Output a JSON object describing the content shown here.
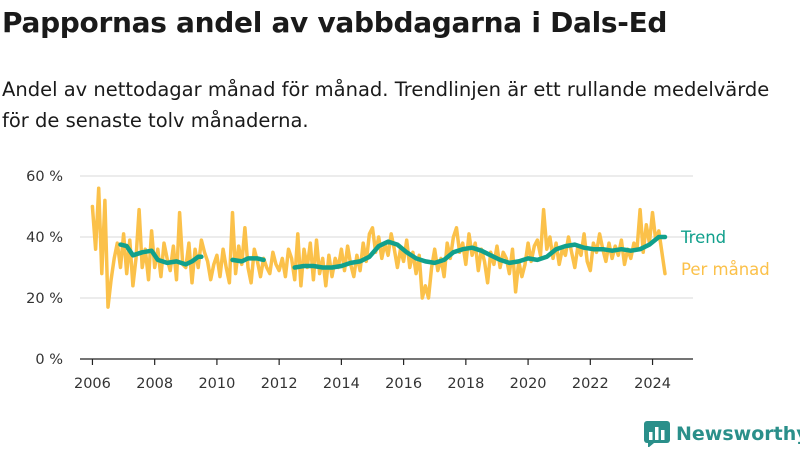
{
  "chart_data": {
    "type": "line",
    "title": "Pappornas andel av vabbdagarna i Dals-Ed",
    "subtitle": "Andel av nettodagar månad för månad. Trendlinjen är ett rullande medelvärde för de senaste tolv månaderna.",
    "xlabel": "",
    "ylabel": "",
    "xlim": [
      2005.6,
      2025.3
    ],
    "ylim": [
      0,
      60
    ],
    "x_ticks": [
      "2006",
      "2008",
      "2010",
      "2012",
      "2014",
      "2016",
      "2018",
      "2020",
      "2022",
      "2024"
    ],
    "y_ticks": [
      {
        "value": 0,
        "label": "0 %"
      },
      {
        "value": 20,
        "label": "20 %"
      },
      {
        "value": 40,
        "label": "40 %"
      },
      {
        "value": 60,
        "label": "60 %"
      }
    ],
    "grid": true,
    "series": [
      {
        "name": "Per månad",
        "color": "#fbc14a",
        "points": [
          [
            2006.0,
            50
          ],
          [
            2006.1,
            36
          ],
          [
            2006.2,
            56
          ],
          [
            2006.3,
            28
          ],
          [
            2006.4,
            52
          ],
          [
            2006.5,
            17
          ],
          [
            2006.6,
            26
          ],
          [
            2006.7,
            33
          ],
          [
            2006.8,
            38
          ],
          [
            2006.9,
            30
          ],
          [
            2007.0,
            41
          ],
          [
            2007.1,
            28
          ],
          [
            2007.2,
            39
          ],
          [
            2007.3,
            24
          ],
          [
            2007.4,
            33
          ],
          [
            2007.5,
            49
          ],
          [
            2007.6,
            30
          ],
          [
            2007.7,
            36
          ],
          [
            2007.8,
            26
          ],
          [
            2007.9,
            42
          ],
          [
            2008.0,
            30
          ],
          [
            2008.1,
            36
          ],
          [
            2008.2,
            27
          ],
          [
            2008.3,
            38
          ],
          [
            2008.4,
            33
          ],
          [
            2008.5,
            29
          ],
          [
            2008.6,
            37
          ],
          [
            2008.7,
            26
          ],
          [
            2008.8,
            48
          ],
          [
            2008.9,
            31
          ],
          [
            2009.0,
            30
          ],
          [
            2009.1,
            38
          ],
          [
            2009.2,
            25
          ],
          [
            2009.3,
            36
          ],
          [
            2009.4,
            30
          ],
          [
            2009.5,
            39
          ],
          [
            2009.6,
            35
          ],
          [
            2009.7,
            32
          ],
          [
            2009.8,
            26
          ],
          [
            2009.9,
            31
          ],
          [
            2010.0,
            34
          ],
          [
            2010.1,
            27
          ],
          [
            2010.2,
            36
          ],
          [
            2010.3,
            30
          ],
          [
            2010.4,
            25
          ],
          [
            2010.5,
            48
          ],
          [
            2010.6,
            28
          ],
          [
            2010.7,
            37
          ],
          [
            2010.8,
            31
          ],
          [
            2010.9,
            43
          ],
          [
            2011.0,
            30
          ],
          [
            2011.1,
            25
          ],
          [
            2011.2,
            36
          ],
          [
            2011.3,
            32
          ],
          [
            2011.4,
            27
          ],
          [
            2011.5,
            33
          ],
          [
            2011.6,
            30
          ],
          [
            2011.7,
            28
          ],
          [
            2011.8,
            35
          ],
          [
            2011.9,
            31
          ],
          [
            2012.0,
            29
          ],
          [
            2012.1,
            33
          ],
          [
            2012.2,
            27
          ],
          [
            2012.3,
            36
          ],
          [
            2012.4,
            33
          ],
          [
            2012.5,
            26
          ],
          [
            2012.6,
            41
          ],
          [
            2012.7,
            24
          ],
          [
            2012.8,
            36
          ],
          [
            2012.9,
            30
          ],
          [
            2013.0,
            38
          ],
          [
            2013.1,
            26
          ],
          [
            2013.2,
            39
          ],
          [
            2013.3,
            28
          ],
          [
            2013.4,
            33
          ],
          [
            2013.5,
            24
          ],
          [
            2013.6,
            34
          ],
          [
            2013.7,
            27
          ],
          [
            2013.8,
            33
          ],
          [
            2013.9,
            30
          ],
          [
            2014.0,
            36
          ],
          [
            2014.1,
            29
          ],
          [
            2014.2,
            37
          ],
          [
            2014.3,
            31
          ],
          [
            2014.4,
            27
          ],
          [
            2014.5,
            34
          ],
          [
            2014.6,
            29
          ],
          [
            2014.7,
            38
          ],
          [
            2014.8,
            32
          ],
          [
            2014.9,
            41
          ],
          [
            2015.0,
            43
          ],
          [
            2015.1,
            35
          ],
          [
            2015.2,
            40
          ],
          [
            2015.3,
            33
          ],
          [
            2015.4,
            38
          ],
          [
            2015.5,
            34
          ],
          [
            2015.6,
            41
          ],
          [
            2015.7,
            36
          ],
          [
            2015.8,
            30
          ],
          [
            2015.9,
            36
          ],
          [
            2016.0,
            32
          ],
          [
            2016.1,
            39
          ],
          [
            2016.2,
            30
          ],
          [
            2016.3,
            35
          ],
          [
            2016.4,
            28
          ],
          [
            2016.5,
            34
          ],
          [
            2016.6,
            20
          ],
          [
            2016.7,
            24
          ],
          [
            2016.8,
            20
          ],
          [
            2016.9,
            30
          ],
          [
            2017.0,
            36
          ],
          [
            2017.1,
            29
          ],
          [
            2017.2,
            33
          ],
          [
            2017.3,
            27
          ],
          [
            2017.4,
            38
          ],
          [
            2017.5,
            33
          ],
          [
            2017.6,
            40
          ],
          [
            2017.7,
            43
          ],
          [
            2017.8,
            35
          ],
          [
            2017.9,
            38
          ],
          [
            2018.0,
            31
          ],
          [
            2018.1,
            41
          ],
          [
            2018.2,
            34
          ],
          [
            2018.3,
            38
          ],
          [
            2018.4,
            29
          ],
          [
            2018.5,
            36
          ],
          [
            2018.6,
            32
          ],
          [
            2018.7,
            25
          ],
          [
            2018.8,
            35
          ],
          [
            2018.9,
            31
          ],
          [
            2019.0,
            37
          ],
          [
            2019.1,
            30
          ],
          [
            2019.2,
            35
          ],
          [
            2019.3,
            33
          ],
          [
            2019.4,
            28
          ],
          [
            2019.5,
            36
          ],
          [
            2019.6,
            22
          ],
          [
            2019.7,
            32
          ],
          [
            2019.8,
            27
          ],
          [
            2019.9,
            31
          ],
          [
            2020.0,
            38
          ],
          [
            2020.1,
            32
          ],
          [
            2020.2,
            37
          ],
          [
            2020.3,
            39
          ],
          [
            2020.4,
            34
          ],
          [
            2020.5,
            49
          ],
          [
            2020.6,
            36
          ],
          [
            2020.7,
            40
          ],
          [
            2020.8,
            33
          ],
          [
            2020.9,
            38
          ],
          [
            2021.0,
            31
          ],
          [
            2021.1,
            36
          ],
          [
            2021.2,
            34
          ],
          [
            2021.3,
            40
          ],
          [
            2021.4,
            35
          ],
          [
            2021.5,
            30
          ],
          [
            2021.6,
            37
          ],
          [
            2021.7,
            34
          ],
          [
            2021.8,
            41
          ],
          [
            2021.9,
            32
          ],
          [
            2022.0,
            29
          ],
          [
            2022.1,
            38
          ],
          [
            2022.2,
            35
          ],
          [
            2022.3,
            41
          ],
          [
            2022.4,
            36
          ],
          [
            2022.5,
            32
          ],
          [
            2022.6,
            38
          ],
          [
            2022.7,
            33
          ],
          [
            2022.8,
            37
          ],
          [
            2022.9,
            34
          ],
          [
            2023.0,
            39
          ],
          [
            2023.1,
            31
          ],
          [
            2023.2,
            36
          ],
          [
            2023.3,
            33
          ],
          [
            2023.4,
            38
          ],
          [
            2023.5,
            36
          ],
          [
            2023.6,
            49
          ],
          [
            2023.7,
            35
          ],
          [
            2023.8,
            44
          ],
          [
            2023.9,
            38
          ],
          [
            2024.0,
            48
          ],
          [
            2024.1,
            39
          ],
          [
            2024.2,
            42
          ],
          [
            2024.3,
            35
          ],
          [
            2024.4,
            28
          ]
        ]
      },
      {
        "name": "Trend",
        "color": "#11a08c",
        "segments": [
          [
            [
              2006.9,
              37.5
            ],
            [
              2007.1,
              37
            ],
            [
              2007.3,
              34
            ],
            [
              2007.6,
              35
            ],
            [
              2007.9,
              35.5
            ],
            [
              2008.1,
              32.5
            ],
            [
              2008.4,
              31.5
            ],
            [
              2008.7,
              32
            ],
            [
              2009.0,
              31
            ],
            [
              2009.2,
              32
            ],
            [
              2009.4,
              33.5
            ],
            [
              2009.5,
              33.5
            ]
          ],
          [
            [
              2010.5,
              32.5
            ],
            [
              2010.8,
              32
            ],
            [
              2011.0,
              33
            ],
            [
              2011.3,
              33
            ],
            [
              2011.5,
              32.5
            ]
          ],
          [
            [
              2012.5,
              30
            ],
            [
              2012.8,
              30.5
            ],
            [
              2013.1,
              30.5
            ],
            [
              2013.4,
              30
            ],
            [
              2013.7,
              30
            ],
            [
              2014.0,
              30.5
            ],
            [
              2014.3,
              31.5
            ],
            [
              2014.6,
              32
            ],
            [
              2014.9,
              33.5
            ],
            [
              2015.2,
              37
            ],
            [
              2015.5,
              38.5
            ],
            [
              2015.8,
              37.5
            ],
            [
              2016.1,
              35
            ],
            [
              2016.4,
              33
            ],
            [
              2016.7,
              32
            ],
            [
              2017.0,
              31.5
            ],
            [
              2017.3,
              32.5
            ],
            [
              2017.6,
              35
            ],
            [
              2017.9,
              36
            ],
            [
              2018.2,
              36.5
            ],
            [
              2018.5,
              35.5
            ],
            [
              2018.8,
              34
            ],
            [
              2019.1,
              32.5
            ],
            [
              2019.4,
              31.5
            ],
            [
              2019.7,
              32
            ],
            [
              2020.0,
              33
            ],
            [
              2020.3,
              32.5
            ],
            [
              2020.6,
              33.5
            ],
            [
              2020.9,
              36
            ],
            [
              2021.2,
              37
            ],
            [
              2021.5,
              37.5
            ],
            [
              2021.8,
              36.5
            ],
            [
              2022.1,
              36
            ],
            [
              2022.4,
              36
            ],
            [
              2022.7,
              35.5
            ],
            [
              2023.0,
              36
            ],
            [
              2023.3,
              35.5
            ],
            [
              2023.6,
              36
            ],
            [
              2023.9,
              37.5
            ],
            [
              2024.2,
              40
            ],
            [
              2024.4,
              40
            ]
          ]
        ]
      }
    ],
    "series_labels": [
      {
        "name": "Trend",
        "text": "Trend",
        "y": 40
      },
      {
        "name": "Per månad",
        "text": "Per månad",
        "y": 29.5
      }
    ]
  },
  "branding": {
    "logo_text": "Newsworthy",
    "logo_icon": "bar-chart-icon",
    "logo_color": "#2a8f8a"
  }
}
